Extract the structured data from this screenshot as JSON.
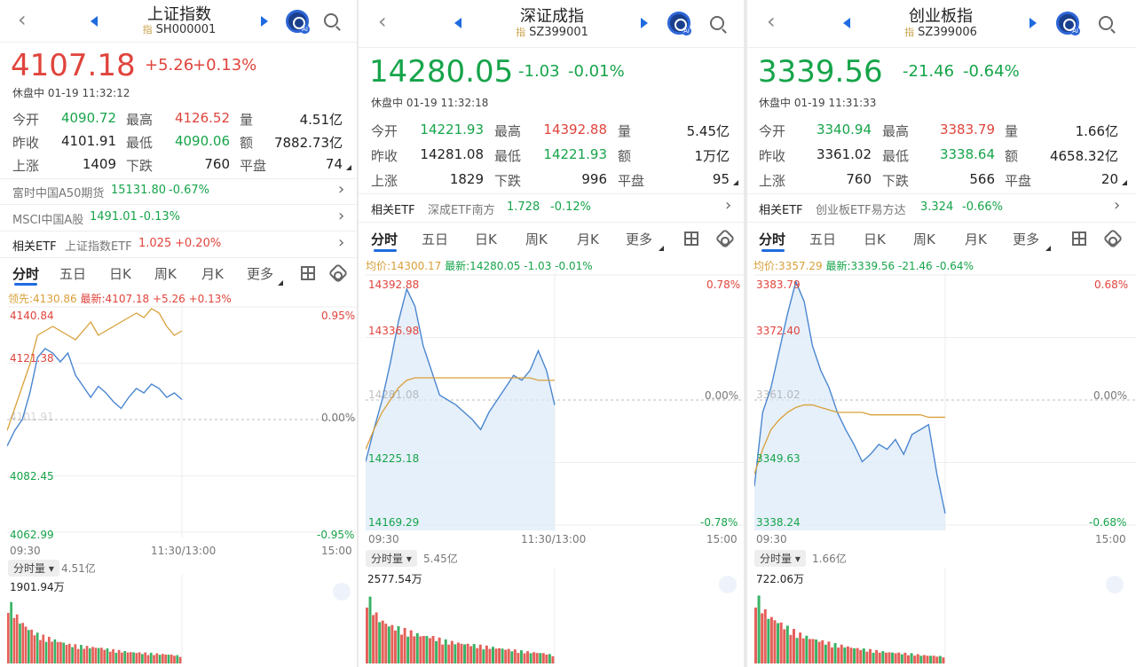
{
  "colors": {
    "up": "#e0443c",
    "down": "#16a44a",
    "accent": "#1e6be0",
    "avg_line": "#d9a03a",
    "price_line": "#4a86d0"
  },
  "icons": [
    "back-icon",
    "prev-triangle-icon",
    "next-triangle-icon",
    "ai-icon",
    "search-icon",
    "chevron-right-icon",
    "grid-icon",
    "gear-icon",
    "expand-icon"
  ],
  "panels": [
    {
      "title": "上证指数",
      "code_prefix": "指",
      "code": "SH000001",
      "price": "4107.18",
      "price_dir": "up",
      "change": "+5.26",
      "change_pct": "+0.13%",
      "status": "休盘中 01-19 11:32:12",
      "stats": [
        [
          {
            "label": "今开",
            "value": "4090.72",
            "dir": "down"
          },
          {
            "label": "最高",
            "value": "4126.52",
            "dir": "up"
          },
          {
            "label": "量",
            "value": "4.51亿",
            "dir": "flat"
          }
        ],
        [
          {
            "label": "昨收",
            "value": "4101.91",
            "dir": "flat"
          },
          {
            "label": "最低",
            "value": "4090.06",
            "dir": "down"
          },
          {
            "label": "额",
            "value": "7882.73亿",
            "dir": "flat"
          }
        ],
        [
          {
            "label": "上涨",
            "value": "1409",
            "dir": "flat"
          },
          {
            "label": "下跌",
            "value": "760",
            "dir": "flat"
          },
          {
            "label": "平盘",
            "value": "74",
            "dir": "flat"
          }
        ]
      ],
      "rows": [
        {
          "label": "富时中国A50期货",
          "value": "15131.80",
          "pct": "-0.67%",
          "dir": "down"
        },
        {
          "label": "MSCI中国A股",
          "value": "1491.01",
          "pct": "-0.13%",
          "dir": "down"
        },
        {
          "label": "相关ETF",
          "sub": "上证指数ETF",
          "value": "1.025",
          "pct": "+0.20%",
          "dir": "up"
        }
      ],
      "tabs": [
        "分时",
        "五日",
        "日K",
        "周K",
        "月K",
        "更多"
      ],
      "legend": {
        "label1": "领先:4130.86",
        "label2": "最新:4107.18",
        "chg": "+5.26",
        "pct": "+0.13%"
      },
      "y_labels": [
        {
          "v": "4140.84",
          "dir": "up"
        },
        {
          "v": "4121.38",
          "dir": "up"
        },
        {
          "v": "4101.91",
          "dir": "flat"
        },
        {
          "v": "4082.45",
          "dir": "down"
        },
        {
          "v": "4062.99",
          "dir": "down"
        }
      ],
      "pct_labels": {
        "top": "0.95%",
        "mid": "0.00%",
        "bot": "-0.95%"
      },
      "x_labels": [
        "09:30",
        "11:30/13:00",
        "15:00"
      ],
      "vol_btn": "分时量",
      "vol_total": "4.51亿",
      "vol_max": "1901.94万"
    },
    {
      "title": "深证成指",
      "code_prefix": "指",
      "code": "SZ399001",
      "price": "14280.05",
      "price_dir": "down",
      "change": "-1.03",
      "change_pct": "-0.01%",
      "status": "休盘中 01-19 11:32:18",
      "stats": [
        [
          {
            "label": "今开",
            "value": "14221.93",
            "dir": "down"
          },
          {
            "label": "最高",
            "value": "14392.88",
            "dir": "up"
          },
          {
            "label": "量",
            "value": "5.45亿",
            "dir": "flat"
          }
        ],
        [
          {
            "label": "昨收",
            "value": "14281.08",
            "dir": "flat"
          },
          {
            "label": "最低",
            "value": "14221.93",
            "dir": "down"
          },
          {
            "label": "额",
            "value": "1万亿",
            "dir": "flat"
          }
        ],
        [
          {
            "label": "上涨",
            "value": "1829",
            "dir": "flat"
          },
          {
            "label": "下跌",
            "value": "996",
            "dir": "flat"
          },
          {
            "label": "平盘",
            "value": "95",
            "dir": "flat"
          }
        ]
      ],
      "rows": [
        {
          "label": "相关ETF",
          "sub": "深成ETF南方",
          "value": "1.728",
          "pct": "-0.12%",
          "dir": "down"
        }
      ],
      "tabs": [
        "分时",
        "五日",
        "日K",
        "周K",
        "月K",
        "更多"
      ],
      "legend": {
        "label1": "均价:14300.17",
        "label2": "最新:14280.05",
        "chg": "-1.03",
        "pct": "-0.01%"
      },
      "y_labels": [
        {
          "v": "14392.88",
          "dir": "up"
        },
        {
          "v": "14336.98",
          "dir": "up"
        },
        {
          "v": "14281.08",
          "dir": "flat"
        },
        {
          "v": "14225.18",
          "dir": "down"
        },
        {
          "v": "14169.29",
          "dir": "down"
        }
      ],
      "pct_labels": {
        "top": "0.78%",
        "mid": "0.00%",
        "bot": "-0.78%"
      },
      "x_labels": [
        "09:30",
        "11:30/13:00",
        "15:00"
      ],
      "vol_btn": "分时量",
      "vol_total": "5.45亿",
      "vol_max": "2577.54万"
    },
    {
      "title": "创业板指",
      "code_prefix": "指",
      "code": "SZ399006",
      "price": "3339.56",
      "price_dir": "down",
      "change": "-21.46",
      "change_pct": "-0.64%",
      "status": "休盘中 01-19 11:31:33",
      "stats": [
        [
          {
            "label": "今开",
            "value": "3340.94",
            "dir": "down"
          },
          {
            "label": "最高",
            "value": "3383.79",
            "dir": "up"
          },
          {
            "label": "量",
            "value": "1.66亿",
            "dir": "flat"
          }
        ],
        [
          {
            "label": "昨收",
            "value": "3361.02",
            "dir": "flat"
          },
          {
            "label": "最低",
            "value": "3338.64",
            "dir": "down"
          },
          {
            "label": "额",
            "value": "4658.32亿",
            "dir": "flat"
          }
        ],
        [
          {
            "label": "上涨",
            "value": "760",
            "dir": "flat"
          },
          {
            "label": "下跌",
            "value": "566",
            "dir": "flat"
          },
          {
            "label": "平盘",
            "value": "20",
            "dir": "flat"
          }
        ]
      ],
      "rows": [
        {
          "label": "相关ETF",
          "sub": "创业板ETF易方达",
          "value": "3.324",
          "pct": "-0.66%",
          "dir": "down"
        }
      ],
      "tabs": [
        "分时",
        "五日",
        "日K",
        "周K",
        "月K",
        "更多"
      ],
      "legend": {
        "label1": "均价:3357.29",
        "label2": "最新:3339.56",
        "chg": "-21.46",
        "pct": "-0.64%"
      },
      "y_labels": [
        {
          "v": "3383.79",
          "dir": "up"
        },
        {
          "v": "3372.40",
          "dir": "up"
        },
        {
          "v": "3361.02",
          "dir": "flat"
        },
        {
          "v": "3349.63",
          "dir": "down"
        },
        {
          "v": "3338.24",
          "dir": "down"
        }
      ],
      "pct_labels": {
        "top": "0.68%",
        "mid": "0.00%",
        "bot": "-0.68%"
      },
      "x_labels": [
        "09:30",
        "",
        "15:00"
      ],
      "vol_btn": "分时量",
      "vol_total": "1.66亿",
      "vol_max": "722.06万"
    }
  ]
}
